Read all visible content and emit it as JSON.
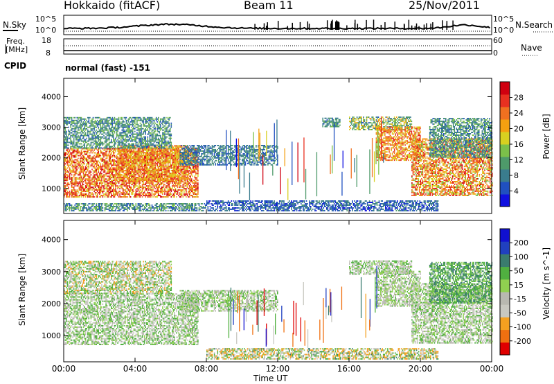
{
  "header": {
    "station": "Hokkaido (fitACF)",
    "beam": "Beam 11",
    "date": "25/Nov/2011"
  },
  "top_strip": {
    "left_label": "N.Sky",
    "left_ticks": [
      "10^5",
      "10^0"
    ],
    "right_ticks": [
      "10^5",
      "10^0"
    ],
    "right_label": "N.Search",
    "right_label_style": "dotted"
  },
  "freq_strip": {
    "left_label_line1": "Freq.",
    "left_label_line2": "[MHz]",
    "left_ticks": [
      "18",
      "8"
    ],
    "right_ticks": [
      "60",
      "0"
    ],
    "right_label": "Nave",
    "right_label_style": "dotted"
  },
  "cpid": {
    "label": "CPID",
    "value": "normal (fast) -151"
  },
  "colors": {
    "power_scale": [
      "#1010e0",
      "#2050c0",
      "#3a7c8e",
      "#4e9a6a",
      "#7bc04a",
      "#d8d020",
      "#f4a010",
      "#f07020",
      "#e83020",
      "#d00010"
    ],
    "velocity_scale": [
      "#e00000",
      "#f07010",
      "#f4a020",
      "#c8c8c0",
      "#b8b8b0",
      "#90d050",
      "#50b040",
      "#3a7c6e",
      "#2040c0",
      "#1010d0"
    ]
  },
  "chart_data": [
    {
      "type": "heatmap",
      "name": "power-panel",
      "ylabel": "Slant Range [km]",
      "ylim": [
        180,
        4600
      ],
      "yticks": [
        "1000",
        "2000",
        "3000",
        "4000"
      ],
      "yticks_values": [
        1000,
        2000,
        3000,
        4000
      ],
      "xlim": [
        0,
        24
      ],
      "colorbar_label": "Power [dB]",
      "colorbar_ticks": [
        "28",
        "24",
        "20",
        "16",
        "12",
        "8",
        "4"
      ],
      "colorbar_range": [
        0,
        32
      ],
      "regions": [
        {
          "t0": 0.0,
          "t1": 7.5,
          "r0": 700,
          "r1": 2300,
          "level": 24,
          "spread": 8
        },
        {
          "t0": 3.0,
          "t1": 7.0,
          "r0": 1200,
          "r1": 2400,
          "level": 22,
          "spread": 6
        },
        {
          "t0": 0.0,
          "t1": 6.0,
          "r0": 2300,
          "r1": 3300,
          "level": 10,
          "spread": 5
        },
        {
          "t0": 6.5,
          "t1": 12.0,
          "r0": 1750,
          "r1": 2400,
          "level": 8,
          "spread": 4
        },
        {
          "t0": 14.5,
          "t1": 15.5,
          "r0": 3000,
          "r1": 3300,
          "level": 10,
          "spread": 4
        },
        {
          "t0": 16.0,
          "t1": 19.5,
          "r0": 2900,
          "r1": 3350,
          "level": 14,
          "spread": 8
        },
        {
          "t0": 17.5,
          "t1": 20.0,
          "r0": 1900,
          "r1": 3000,
          "level": 22,
          "spread": 6
        },
        {
          "t0": 19.5,
          "t1": 24.0,
          "r0": 750,
          "r1": 2600,
          "level": 22,
          "spread": 8
        },
        {
          "t0": 20.5,
          "t1": 24.0,
          "r0": 2000,
          "r1": 3300,
          "level": 10,
          "spread": 5
        },
        {
          "t0": 8.0,
          "t1": 21.0,
          "r0": 250,
          "r1": 600,
          "level": 6,
          "spread": 4
        },
        {
          "t0": 0.0,
          "t1": 8.0,
          "r0": 250,
          "r1": 500,
          "level": 10,
          "spread": 6
        }
      ]
    },
    {
      "type": "heatmap",
      "name": "velocity-panel",
      "ylabel": "Slant Range [km]",
      "ylim": [
        180,
        4600
      ],
      "yticks": [
        "1000",
        "2000",
        "3000",
        "4000"
      ],
      "yticks_values": [
        1000,
        2000,
        3000,
        4000
      ],
      "xlim": [
        0,
        24
      ],
      "xlabel": "Time UT",
      "xticks": [
        "00:00",
        "04:00",
        "08:00",
        "12:00",
        "16:00",
        "20:00",
        "00:00"
      ],
      "xticks_values": [
        0,
        4,
        8,
        12,
        16,
        20,
        24
      ],
      "colorbar_label": "Velocity [m s^-1]",
      "colorbar_ticks": [
        "200",
        "100",
        "50",
        "15",
        "-15",
        "-50",
        "-100",
        "-200"
      ],
      "colorbar_range": [
        -250,
        250
      ],
      "regions": [
        {
          "t0": 0.0,
          "t1": 7.5,
          "r0": 700,
          "r1": 2300,
          "level": 0,
          "spread": 40
        },
        {
          "t0": 0.0,
          "t1": 6.0,
          "r0": 2300,
          "r1": 3300,
          "level": -10,
          "spread": 60
        },
        {
          "t0": 6.5,
          "t1": 12.0,
          "r0": 1750,
          "r1": 2400,
          "level": 0,
          "spread": 30
        },
        {
          "t0": 16.0,
          "t1": 19.5,
          "r0": 2900,
          "r1": 3350,
          "level": 0,
          "spread": 40
        },
        {
          "t0": 17.5,
          "t1": 20.0,
          "r0": 1900,
          "r1": 3000,
          "level": 0,
          "spread": 20
        },
        {
          "t0": 19.5,
          "t1": 24.0,
          "r0": 750,
          "r1": 2600,
          "level": 0,
          "spread": 30
        },
        {
          "t0": 20.5,
          "t1": 24.0,
          "r0": 2000,
          "r1": 3300,
          "level": 40,
          "spread": 40
        },
        {
          "t0": 8.0,
          "t1": 21.0,
          "r0": 250,
          "r1": 600,
          "level": -20,
          "spread": 80
        }
      ]
    }
  ]
}
